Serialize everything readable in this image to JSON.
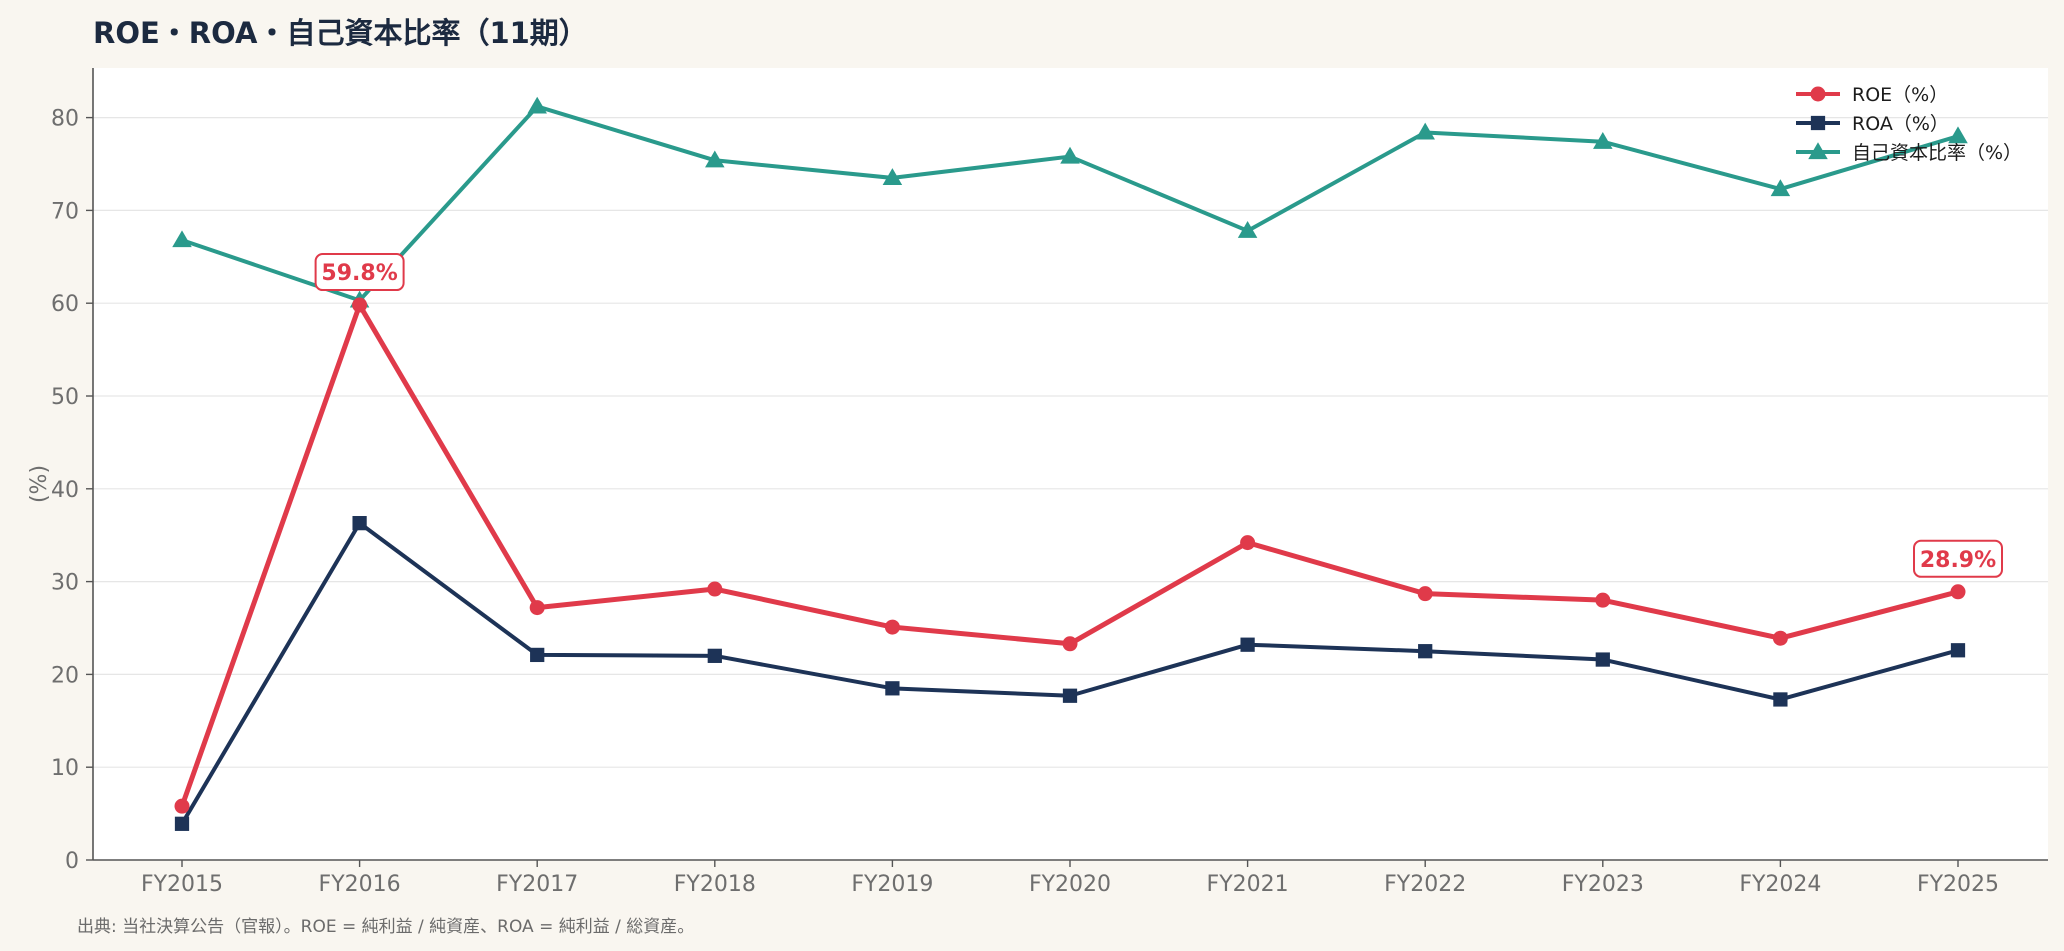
{
  "title": "ROE・ROA・自己資本比率（11期）",
  "source_note": "出典: 当社決算公告（官報）。ROE = 純利益 / 純資産、ROA = 純利益 / 総資産。",
  "chart_data": {
    "type": "line",
    "title": "ROE・ROA・自己資本比率（11期）",
    "xlabel": "",
    "ylabel": "(%)",
    "ylim": [
      0,
      85
    ],
    "yticks": [
      0,
      10,
      20,
      30,
      40,
      50,
      60,
      70,
      80
    ],
    "grid": true,
    "legend_position": "top-right",
    "categories": [
      "FY2015",
      "FY2016",
      "FY2017",
      "FY2018",
      "FY2019",
      "FY2020",
      "FY2021",
      "FY2022",
      "FY2023",
      "FY2024",
      "FY2025"
    ],
    "series": [
      {
        "name": "ROE（%）",
        "color": "#e03a4a",
        "marker": "circle",
        "values": [
          5.8,
          59.8,
          27.2,
          29.2,
          25.1,
          23.3,
          34.2,
          28.7,
          28.0,
          23.9,
          28.9
        ]
      },
      {
        "name": "ROA（%）",
        "color": "#1d3357",
        "marker": "square",
        "values": [
          3.9,
          36.3,
          22.1,
          22.0,
          18.5,
          17.7,
          23.2,
          22.5,
          21.6,
          17.3,
          22.6
        ]
      },
      {
        "name": "自己資本比率（%）",
        "color": "#2a9a8c",
        "marker": "triangle",
        "values": [
          66.8,
          60.3,
          81.2,
          75.4,
          73.5,
          75.8,
          67.8,
          78.4,
          77.4,
          72.3,
          78.0
        ]
      }
    ],
    "annotations": [
      {
        "series": 0,
        "index": 1,
        "text": "59.8%"
      },
      {
        "series": 0,
        "index": 10,
        "text": "28.9%"
      }
    ]
  }
}
